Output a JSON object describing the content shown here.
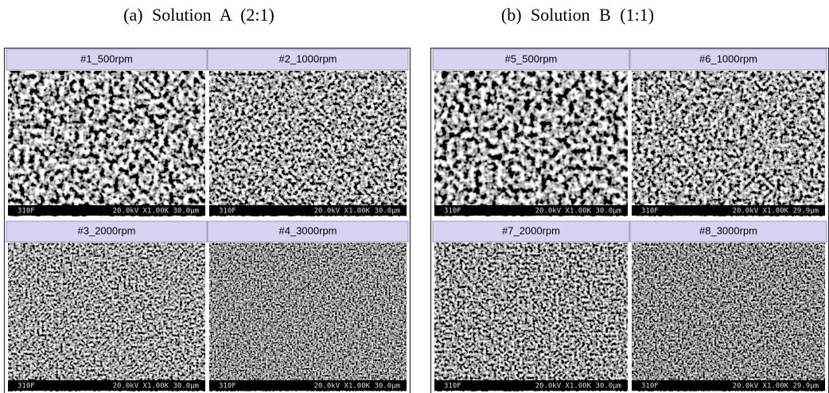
{
  "panels": [
    {
      "title": "(a) Solution A (2:1)",
      "images": [
        {
          "label": "#1_500rpm",
          "code": "310F",
          "info": "20.0kV X1.00K 30.0µm"
        },
        {
          "label": "#2_1000rpm",
          "code": "310F",
          "info": "20.0kV X1.00K 30.0µm"
        },
        {
          "label": "#3_2000rpm",
          "code": "310F",
          "info": "20.0kV X1.00K 30.0µm"
        },
        {
          "label": "#4_3000rpm",
          "code": "310F",
          "info": "20.0kV X1.00K 30.0µm"
        }
      ]
    },
    {
      "title": "(b) Solution B (1:1)",
      "images": [
        {
          "label": "#5_500rpm",
          "code": "310F",
          "info": "20.0kV X1.00K 30.0µm"
        },
        {
          "label": "#6_1000rpm",
          "code": "310F",
          "info": "20.0kV X1.00K 29.9µm"
        },
        {
          "label": "#7_2000rpm",
          "code": "310F",
          "info": "20.0kV X1.00K 30.0µm"
        },
        {
          "label": "#8_3000rpm",
          "code": "310F",
          "info": "20.0kV X1.00K 29.9µm"
        }
      ]
    }
  ]
}
